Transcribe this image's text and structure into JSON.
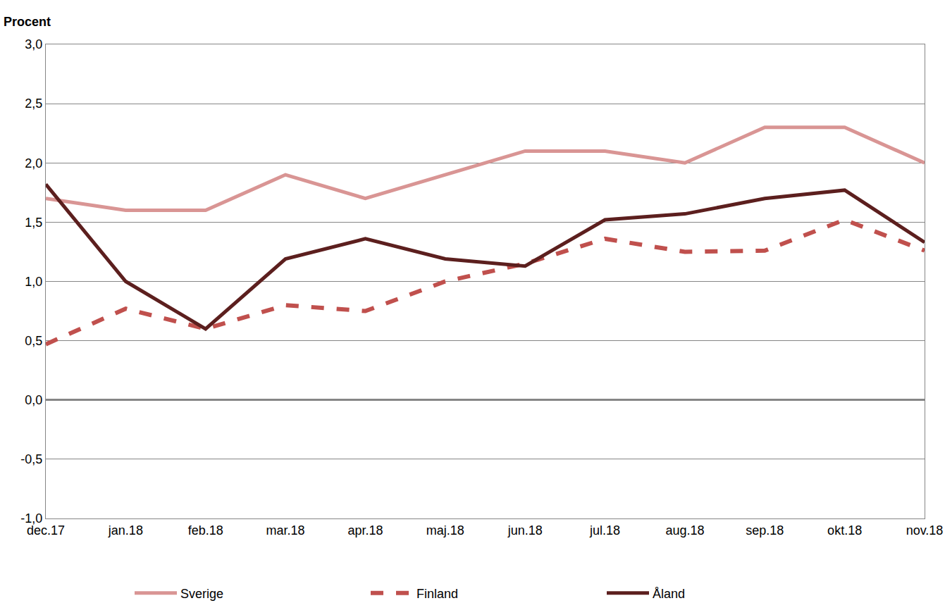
{
  "chart_data": {
    "type": "line",
    "y_label": "Procent",
    "categories": [
      "dec.17",
      "jan.18",
      "feb.18",
      "mar.18",
      "apr.18",
      "maj.18",
      "jun.18",
      "jul.18",
      "aug.18",
      "sep.18",
      "okt.18",
      "nov.18"
    ],
    "series": [
      {
        "name": "Sverige",
        "color": "#d99594",
        "line_style": "solid",
        "values": [
          1.7,
          1.6,
          1.6,
          1.9,
          1.7,
          1.9,
          2.1,
          2.1,
          2.0,
          2.3,
          2.3,
          2.0
        ]
      },
      {
        "name": "Finland",
        "color": "#c0504d",
        "line_style": "dash",
        "values": [
          0.47,
          0.77,
          0.6,
          0.8,
          0.75,
          1.0,
          1.15,
          1.36,
          1.25,
          1.26,
          1.52,
          1.26
        ]
      },
      {
        "name": "Åland",
        "color": "#5c1f1e",
        "line_style": "solid",
        "values": [
          1.82,
          1.0,
          0.6,
          1.19,
          1.36,
          1.19,
          1.13,
          1.52,
          1.57,
          1.7,
          1.77,
          1.33
        ]
      }
    ],
    "ylim": [
      -1.0,
      3.0
    ],
    "yticks": [
      {
        "value": -1.0,
        "label": "-1,0"
      },
      {
        "value": -0.5,
        "label": "-0,5"
      },
      {
        "value": 0.0,
        "label": "0,0"
      },
      {
        "value": 0.5,
        "label": "0,5"
      },
      {
        "value": 1.0,
        "label": "1,0"
      },
      {
        "value": 1.5,
        "label": "1,5"
      },
      {
        "value": 2.0,
        "label": "2,0"
      },
      {
        "value": 2.5,
        "label": "2,5"
      },
      {
        "value": 3.0,
        "label": "3,0"
      }
    ],
    "grid": true,
    "legend": "bottom"
  }
}
